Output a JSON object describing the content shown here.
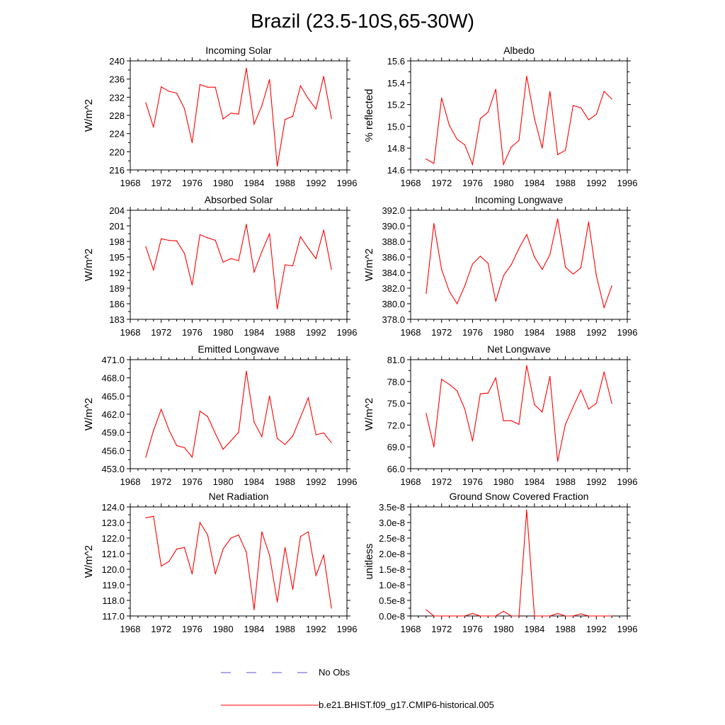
{
  "title": "Brazil (23.5-10S,65-30W)",
  "colors": {
    "model": "#ff0000",
    "obs": "#5555cc",
    "axis": "#000000"
  },
  "legend": {
    "obs_label": "No Obs",
    "model_label": "b.e21.BHIST.f09_g17.CMIP6-historical.005"
  },
  "chart_data": [
    {
      "type": "line",
      "title": "Incoming Solar",
      "xlabel": "",
      "ylabel": "W/m^2",
      "xlim": [
        1968,
        1996
      ],
      "ylim": [
        216,
        240
      ],
      "xticks": [
        "1968",
        "1972",
        "1976",
        "1980",
        "1984",
        "1988",
        "1992",
        "1996"
      ],
      "yticks": [
        "216",
        "220",
        "224",
        "228",
        "232",
        "236",
        "240"
      ],
      "x": [
        1970,
        1971,
        1972,
        1973,
        1974,
        1975,
        1976,
        1977,
        1978,
        1979,
        1980,
        1981,
        1982,
        1983,
        1984,
        1985,
        1986,
        1987,
        1988,
        1989,
        1990,
        1991,
        1992,
        1993,
        1994
      ],
      "series": [
        {
          "name": "b.e21.BHIST.f09_g17.CMIP6-historical.005",
          "values": [
            230.8,
            225.4,
            234.3,
            233.3,
            232.9,
            229.5,
            222.0,
            234.8,
            234.2,
            234.2,
            227.2,
            228.5,
            228.3,
            238.4,
            226.1,
            230.1,
            235.9,
            216.8,
            227.1,
            227.8,
            234.5,
            231.7,
            229.4,
            236.6,
            227.3
          ]
        }
      ]
    },
    {
      "type": "line",
      "title": "Albedo",
      "xlabel": "",
      "ylabel": "% reflected",
      "xlim": [
        1968,
        1996
      ],
      "ylim": [
        14.6,
        15.6
      ],
      "xticks": [
        "1968",
        "1972",
        "1976",
        "1980",
        "1984",
        "1988",
        "1992",
        "1996"
      ],
      "yticks": [
        "14.6",
        "14.8",
        "15.0",
        "15.2",
        "15.4",
        "15.6"
      ],
      "x": [
        1970,
        1971,
        1972,
        1973,
        1974,
        1975,
        1976,
        1977,
        1978,
        1979,
        1980,
        1981,
        1982,
        1983,
        1984,
        1985,
        1986,
        1987,
        1988,
        1989,
        1990,
        1991,
        1992,
        1993,
        1994
      ],
      "series": [
        {
          "name": "b.e21.BHIST.f09_g17.CMIP6-historical.005",
          "values": [
            14.7,
            14.66,
            15.26,
            15.01,
            14.88,
            14.83,
            14.65,
            15.07,
            15.13,
            15.34,
            14.65,
            14.81,
            14.87,
            15.46,
            15.07,
            14.8,
            15.32,
            14.74,
            14.78,
            15.19,
            15.17,
            15.06,
            15.11,
            15.32,
            15.25
          ]
        }
      ]
    },
    {
      "type": "line",
      "title": "Absorbed Solar",
      "xlabel": "",
      "ylabel": "W/m^2",
      "xlim": [
        1968,
        1996
      ],
      "ylim": [
        183,
        204
      ],
      "xticks": [
        "1968",
        "1972",
        "1976",
        "1980",
        "1984",
        "1988",
        "1992",
        "1996"
      ],
      "yticks": [
        "183",
        "186",
        "189",
        "192",
        "195",
        "198",
        "201",
        "204"
      ],
      "x": [
        1970,
        1971,
        1972,
        1973,
        1974,
        1975,
        1976,
        1977,
        1978,
        1979,
        1980,
        1981,
        1982,
        1983,
        1984,
        1985,
        1986,
        1987,
        1988,
        1989,
        1990,
        1991,
        1992,
        1993,
        1994
      ],
      "series": [
        {
          "name": "b.e21.BHIST.f09_g17.CMIP6-historical.005",
          "values": [
            197.0,
            192.5,
            198.5,
            198.2,
            198.1,
            195.7,
            189.6,
            199.3,
            198.7,
            198.2,
            194.0,
            194.7,
            194.3,
            201.3,
            192.1,
            196.0,
            199.5,
            185.0,
            193.5,
            193.3,
            198.9,
            196.7,
            194.7,
            200.2,
            192.6
          ]
        }
      ]
    },
    {
      "type": "line",
      "title": "Incoming Longwave",
      "xlabel": "",
      "ylabel": "W/m^2",
      "xlim": [
        1968,
        1996
      ],
      "ylim": [
        378.0,
        392.0
      ],
      "xticks": [
        "1968",
        "1972",
        "1976",
        "1980",
        "1984",
        "1988",
        "1992",
        "1996"
      ],
      "yticks": [
        "378.0",
        "380.0",
        "382.0",
        "384.0",
        "386.0",
        "388.0",
        "390.0",
        "392.0"
      ],
      "x": [
        1970,
        1971,
        1972,
        1973,
        1974,
        1975,
        1976,
        1977,
        1978,
        1979,
        1980,
        1981,
        1982,
        1983,
        1984,
        1985,
        1986,
        1987,
        1988,
        1989,
        1990,
        1991,
        1992,
        1993,
        1994
      ],
      "series": [
        {
          "name": "b.e21.BHIST.f09_g17.CMIP6-historical.005",
          "values": [
            381.3,
            390.3,
            384.4,
            381.6,
            380.0,
            382.3,
            385.1,
            386.1,
            385.2,
            380.3,
            383.6,
            385.0,
            387.1,
            388.9,
            386.0,
            384.4,
            386.3,
            390.9,
            384.7,
            383.8,
            384.6,
            390.5,
            383.6,
            379.5,
            382.3
          ]
        }
      ]
    },
    {
      "type": "line",
      "title": "Emitted Longwave",
      "xlabel": "",
      "ylabel": "W/m^2",
      "xlim": [
        1968,
        1996
      ],
      "ylim": [
        453.0,
        471.0
      ],
      "xticks": [
        "1968",
        "1972",
        "1976",
        "1980",
        "1984",
        "1988",
        "1992",
        "1996"
      ],
      "yticks": [
        "453.0",
        "456.0",
        "459.0",
        "462.0",
        "465.0",
        "468.0",
        "471.0"
      ],
      "x": [
        1970,
        1971,
        1972,
        1973,
        1974,
        1975,
        1976,
        1977,
        1978,
        1979,
        1980,
        1981,
        1982,
        1983,
        1984,
        1985,
        1986,
        1987,
        1988,
        1989,
        1990,
        1991,
        1992,
        1993,
        1994
      ],
      "series": [
        {
          "name": "b.e21.BHIST.f09_g17.CMIP6-historical.005",
          "values": [
            454.9,
            459.3,
            462.8,
            459.4,
            456.8,
            456.5,
            454.9,
            462.5,
            461.6,
            458.8,
            456.2,
            457.6,
            459.0,
            469.1,
            460.7,
            458.3,
            465.0,
            458.0,
            457.0,
            458.4,
            461.5,
            464.7,
            458.6,
            458.9,
            457.3
          ]
        }
      ]
    },
    {
      "type": "line",
      "title": "Net Longwave",
      "xlabel": "",
      "ylabel": "W/m^2",
      "xlim": [
        1968,
        1996
      ],
      "ylim": [
        66.0,
        81.0
      ],
      "xticks": [
        "1968",
        "1972",
        "1976",
        "1980",
        "1984",
        "1988",
        "1992",
        "1996"
      ],
      "yticks": [
        "66.0",
        "69.0",
        "72.0",
        "75.0",
        "78.0",
        "81.0"
      ],
      "x": [
        1970,
        1971,
        1972,
        1973,
        1974,
        1975,
        1976,
        1977,
        1978,
        1979,
        1980,
        1981,
        1982,
        1983,
        1984,
        1985,
        1986,
        1987,
        1988,
        1989,
        1990,
        1991,
        1992,
        1993,
        1994
      ],
      "series": [
        {
          "name": "b.e21.BHIST.f09_g17.CMIP6-historical.005",
          "values": [
            73.6,
            69.0,
            78.3,
            77.6,
            76.7,
            74.2,
            69.8,
            76.3,
            76.4,
            78.5,
            72.6,
            72.6,
            72.1,
            80.2,
            74.8,
            73.8,
            78.7,
            67.0,
            72.1,
            74.5,
            76.8,
            74.2,
            75.0,
            79.3,
            75.0
          ]
        }
      ]
    },
    {
      "type": "line",
      "title": "Net Radiation",
      "xlabel": "",
      "ylabel": "W/m^2",
      "xlim": [
        1968,
        1996
      ],
      "ylim": [
        117.0,
        124.0
      ],
      "xticks": [
        "1968",
        "1972",
        "1976",
        "1980",
        "1984",
        "1988",
        "1992",
        "1996"
      ],
      "yticks": [
        "117.0",
        "118.0",
        "119.0",
        "120.0",
        "121.0",
        "122.0",
        "123.0",
        "124.0"
      ],
      "x": [
        1970,
        1971,
        1972,
        1973,
        1974,
        1975,
        1976,
        1977,
        1978,
        1979,
        1980,
        1981,
        1982,
        1983,
        1984,
        1985,
        1986,
        1987,
        1988,
        1989,
        1990,
        1991,
        1992,
        1993,
        1994
      ],
      "series": [
        {
          "name": "b.e21.BHIST.f09_g17.CMIP6-historical.005",
          "values": [
            123.3,
            123.4,
            120.2,
            120.5,
            121.3,
            121.4,
            119.7,
            123.0,
            122.2,
            119.7,
            121.3,
            122.0,
            122.2,
            121.1,
            117.4,
            122.4,
            120.9,
            117.9,
            121.4,
            118.7,
            122.1,
            122.4,
            119.6,
            120.9,
            117.5
          ]
        }
      ]
    },
    {
      "type": "line",
      "title": "Ground Snow Covered Fraction",
      "xlabel": "",
      "ylabel": "unitless",
      "xlim": [
        1968,
        1996
      ],
      "ylim": [
        0.0,
        3.5e-08
      ],
      "xticks": [
        "1968",
        "1972",
        "1976",
        "1980",
        "1984",
        "1988",
        "1992",
        "1996"
      ],
      "yticks": [
        "0.0e-8",
        "0.5e-8",
        "1.0e-8",
        "1.5e-8",
        "2.0e-8",
        "2.5e-8",
        "3.0e-8",
        "3.5e-8"
      ],
      "x": [
        1970,
        1971,
        1972,
        1973,
        1974,
        1975,
        1976,
        1977,
        1978,
        1979,
        1980,
        1981,
        1982,
        1983,
        1984,
        1985,
        1986,
        1987,
        1988,
        1989,
        1990,
        1991,
        1992,
        1993,
        1994
      ],
      "series": [
        {
          "name": "b.e21.BHIST.f09_g17.CMIP6-historical.005",
          "values": [
            2e-09,
            0,
            0,
            0,
            0,
            0,
            8e-10,
            0,
            0,
            0,
            1.5e-09,
            0,
            0,
            3.4e-08,
            0,
            0,
            0,
            8e-10,
            0,
            0,
            7e-10,
            0,
            0,
            0,
            0
          ]
        }
      ]
    }
  ]
}
